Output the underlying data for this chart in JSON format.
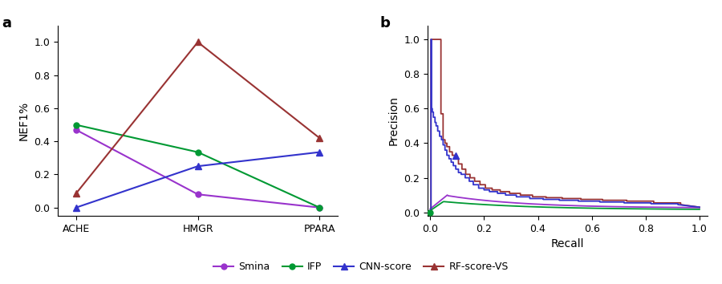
{
  "panel_a": {
    "categories": [
      "ACHE",
      "HMGR",
      "PPARA"
    ],
    "smina": [
      0.47,
      0.08,
      0.0
    ],
    "ifp": [
      0.5,
      0.335,
      0.0
    ],
    "cnn_score": [
      0.0,
      0.25,
      0.335
    ],
    "rf_score_vs": [
      0.085,
      1.0,
      0.42
    ],
    "ylabel": "NEF1%",
    "smina_color": "#9933cc",
    "ifp_color": "#009933",
    "cnn_color": "#3333cc",
    "rf_color": "#993333"
  },
  "panel_b": {
    "xlabel": "Recall",
    "ylabel": "Precision",
    "smina_color": "#9933cc",
    "ifp_color": "#009933",
    "cnn_color": "#3333cc",
    "rf_color": "#993333"
  },
  "legend": {
    "smina_label": "Smina",
    "ifp_label": "IFP",
    "cnn_label": "CNN-score",
    "rf_label": "RF-score-VS"
  }
}
